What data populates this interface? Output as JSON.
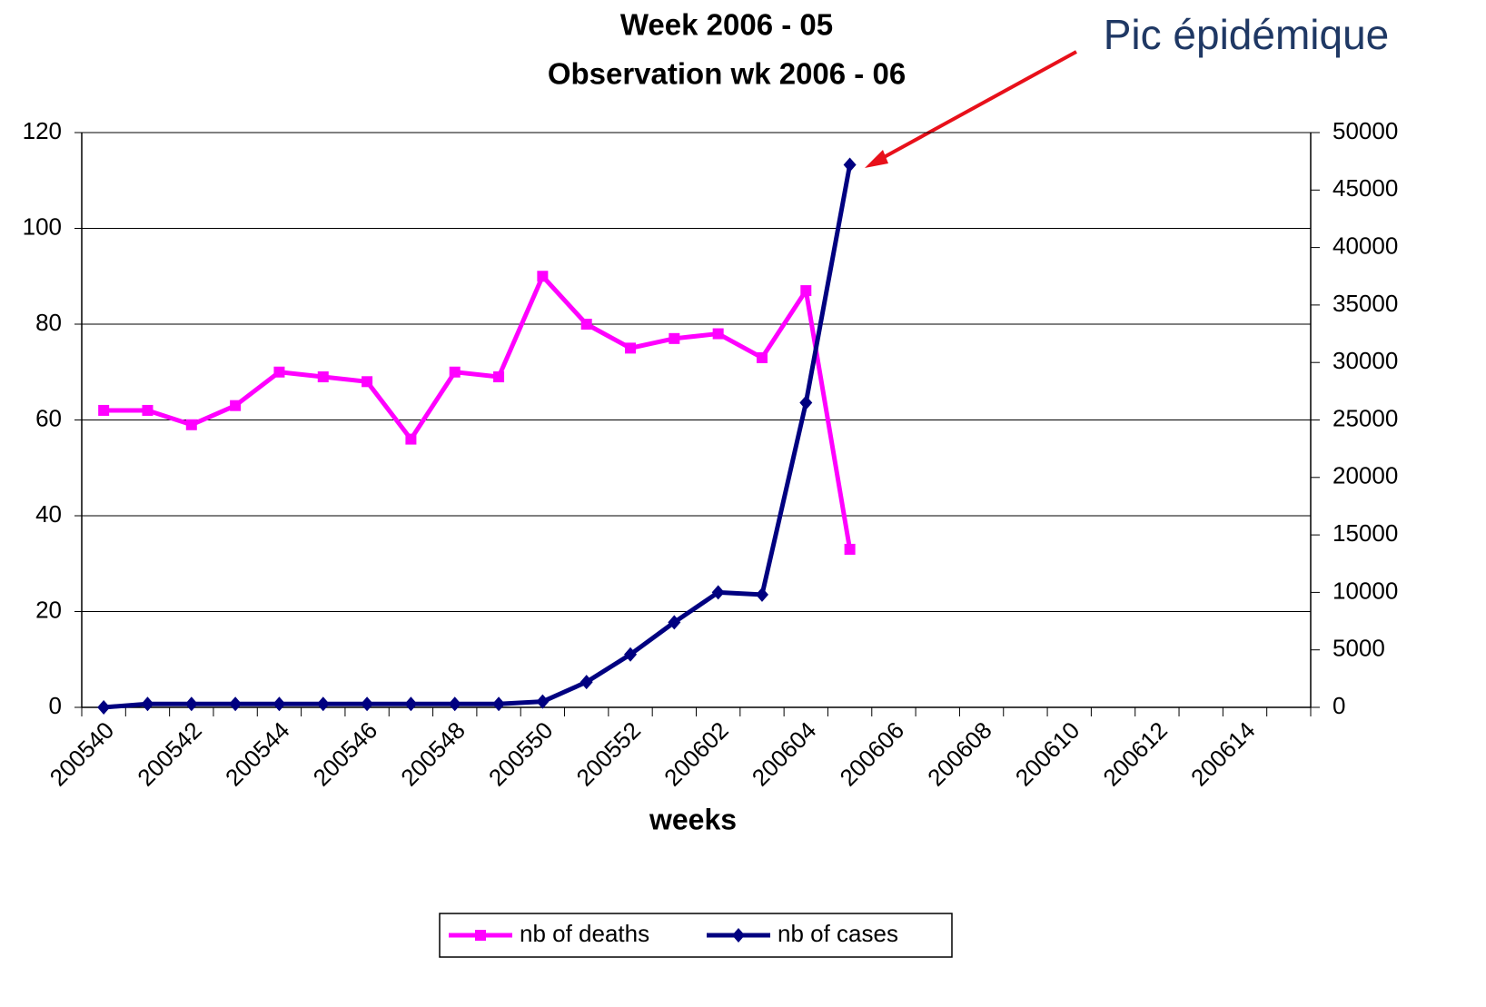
{
  "chart_data": {
    "type": "line",
    "title": "Week  2006 - 05",
    "subtitle": "Observation wk 2006 - 06",
    "annotation": "Pic épidémique",
    "x_label": "weeks",
    "categories": [
      "200540",
      null,
      "200542",
      null,
      "200544",
      null,
      "200546",
      null,
      "200548",
      null,
      "200550",
      null,
      "200552",
      null,
      "200602",
      null,
      "200604",
      null,
      "200606",
      null,
      "200608",
      null,
      "200610",
      null,
      "200612",
      null,
      "200614",
      null
    ],
    "series": [
      {
        "name": "nb of deaths",
        "color": "#ff00ff",
        "marker": "square",
        "values": [
          62,
          62,
          59,
          63,
          70,
          69,
          68,
          56,
          70,
          69,
          90,
          80,
          75,
          77,
          78,
          73,
          87,
          33,
          null,
          null,
          null,
          null,
          null,
          null,
          null,
          null,
          null,
          null
        ]
      },
      {
        "name": "nb of cases",
        "color": "#000080",
        "marker": "diamond",
        "axis": "y2",
        "values": [
          0,
          300,
          300,
          300,
          300,
          300,
          300,
          300,
          300,
          300,
          500,
          2200,
          4600,
          7400,
          10000,
          9800,
          26500,
          47200,
          null,
          null,
          null,
          null,
          null,
          null,
          null,
          null,
          null,
          null
        ]
      }
    ],
    "ylim": [
      0,
      120
    ],
    "yticks": [
      0,
      20,
      40,
      60,
      80,
      100,
      120
    ],
    "y2lim": [
      0,
      50000
    ],
    "y2ticks": [
      0,
      5000,
      10000,
      15000,
      20000,
      25000,
      30000,
      35000,
      40000,
      45000,
      50000
    ],
    "grid": true,
    "legend": "bottom"
  }
}
